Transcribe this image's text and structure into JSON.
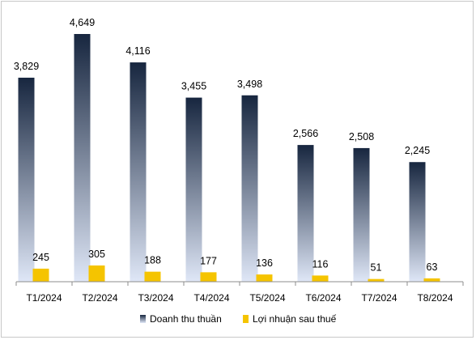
{
  "chart_data": {
    "type": "bar",
    "title": "",
    "xlabel": "",
    "ylabel": "",
    "categories": [
      "T1/2024",
      "T2/2024",
      "T3/2024",
      "T4/2024",
      "T5/2024",
      "T6/2024",
      "T7/2024",
      "T8/2024"
    ],
    "series": [
      {
        "name": "Doanh thu thuần",
        "values": [
          3829,
          4649,
          4116,
          3455,
          3498,
          2566,
          2508,
          2245
        ],
        "labels": [
          "3,829",
          "4,649",
          "4,116",
          "3,455",
          "3,498",
          "2,566",
          "2,508",
          "2,245"
        ],
        "color_top": "#17263f",
        "color_bottom": "#dfe7f7"
      },
      {
        "name": "Lợi nhuận sau thuế",
        "values": [
          245,
          305,
          188,
          177,
          136,
          116,
          51,
          63
        ],
        "labels": [
          "245",
          "305",
          "188",
          "177",
          "136",
          "116",
          "51",
          "63"
        ],
        "color": "#f5c400"
      }
    ],
    "ylim": [
      0,
      4950
    ],
    "grid": false,
    "legend_position": "bottom"
  }
}
